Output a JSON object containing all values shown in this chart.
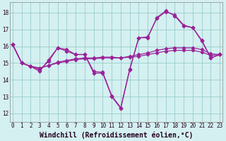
{
  "x_ticks": [
    0,
    1,
    2,
    3,
    4,
    5,
    6,
    7,
    8,
    9,
    10,
    11,
    12,
    13,
    14,
    15,
    16,
    17,
    18,
    19,
    20,
    21,
    22,
    23
  ],
  "s_jagged1": [
    16.1,
    15.0,
    14.8,
    14.5,
    15.2,
    15.9,
    15.7,
    15.5,
    15.5,
    14.4,
    14.4,
    13.0,
    12.3,
    14.6,
    16.5,
    16.5,
    17.7,
    18.1,
    17.8,
    17.2,
    17.1,
    16.3,
    15.3,
    15.5
  ],
  "s_jagged2": [
    16.1,
    15.0,
    14.8,
    14.6,
    15.1,
    15.9,
    15.8,
    15.5,
    15.5,
    14.5,
    14.45,
    13.05,
    12.35,
    14.65,
    16.5,
    16.55,
    17.65,
    18.05,
    17.85,
    17.25,
    17.1,
    16.35,
    15.3,
    15.5
  ],
  "s_smooth1": [
    16.1,
    15.0,
    14.8,
    14.7,
    14.85,
    15.0,
    15.1,
    15.2,
    15.25,
    15.25,
    15.3,
    15.3,
    15.3,
    15.35,
    15.4,
    15.5,
    15.6,
    15.7,
    15.75,
    15.75,
    15.75,
    15.65,
    15.45,
    15.5
  ],
  "s_smooth2": [
    16.1,
    15.0,
    14.8,
    14.7,
    14.85,
    15.05,
    15.15,
    15.25,
    15.3,
    15.3,
    15.35,
    15.35,
    15.3,
    15.4,
    15.5,
    15.6,
    15.75,
    15.85,
    15.9,
    15.9,
    15.9,
    15.8,
    15.55,
    15.5
  ],
  "color_jagged": "#992299",
  "color_smooth": "#882288",
  "bg_color": "#d4f0f0",
  "grid_color": "#99cccc",
  "ylim": [
    11.5,
    18.6
  ],
  "xlim": [
    -0.3,
    23.3
  ],
  "ylabel_vals": [
    12,
    13,
    14,
    15,
    16,
    17,
    18
  ],
  "xlabel": "Windchill (Refroidissement éolien,°C)",
  "tick_fontsize": 5.5,
  "xlabel_fontsize": 7.0
}
